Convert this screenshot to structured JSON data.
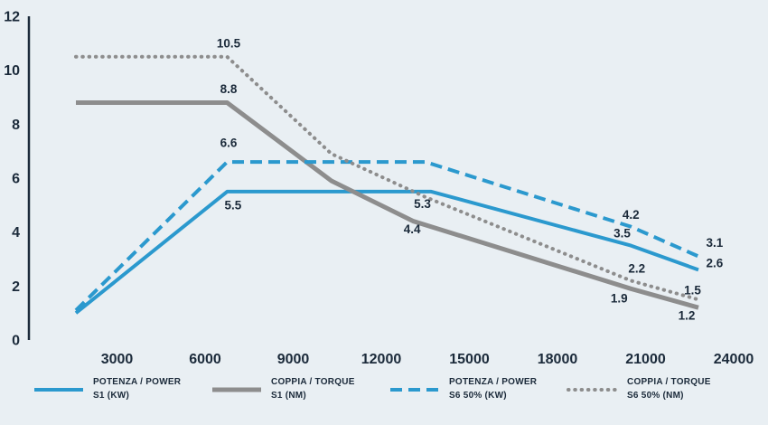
{
  "chart_data": {
    "type": "line",
    "title": "",
    "xlabel": "",
    "ylabel": "",
    "xlim": [
      0,
      24000
    ],
    "ylim": [
      0,
      12
    ],
    "x_tick_values": [
      3000,
      6000,
      9000,
      12000,
      15000,
      18000,
      21000,
      24000
    ],
    "x_ticks": [
      "3000",
      "6000",
      "9000",
      "12000",
      "15000",
      "18000",
      "21000",
      "24000"
    ],
    "y_ticks": [
      0,
      2,
      4,
      6,
      8,
      10,
      12
    ],
    "grid": false,
    "legend_position": "bottom",
    "series": [
      {
        "name": "POTENZA / POWER S1 (KW)",
        "color": "#2b99ce",
        "dash": "solid",
        "width": 4,
        "points": [
          [
            1600,
            1.0
          ],
          [
            6750,
            5.5
          ],
          [
            13700,
            5.5
          ],
          [
            20500,
            3.5
          ],
          [
            22800,
            2.6
          ]
        ]
      },
      {
        "name": "COPPIA / TORQUE S1 (NM)",
        "color": "#8d8d8d",
        "dash": "solid",
        "width": 5,
        "points": [
          [
            1600,
            8.8
          ],
          [
            6750,
            8.8
          ],
          [
            10300,
            5.9
          ],
          [
            13100,
            4.4
          ],
          [
            20500,
            1.9
          ],
          [
            22800,
            1.2
          ]
        ]
      },
      {
        "name": "POTENZA / POWER S6 50% (KW)",
        "color": "#2b99ce",
        "dash": "dashed",
        "width": 4,
        "points": [
          [
            1600,
            1.1
          ],
          [
            6750,
            6.6
          ],
          [
            13500,
            6.6
          ],
          [
            20500,
            4.2
          ],
          [
            22800,
            3.1
          ]
        ]
      },
      {
        "name": "COPPIA / TORQUE S6 50% (NM)",
        "color": "#8d8d8d",
        "dash": "dotted",
        "width": 4,
        "points": [
          [
            1600,
            10.5
          ],
          [
            6750,
            10.5
          ],
          [
            10300,
            6.9
          ],
          [
            13500,
            5.3
          ],
          [
            20500,
            2.2
          ],
          [
            22800,
            1.5
          ]
        ]
      }
    ],
    "point_labels": [
      {
        "text": "10.5",
        "x": 6800,
        "y": 11.0
      },
      {
        "text": "8.8",
        "x": 6800,
        "y": 9.3
      },
      {
        "text": "6.6",
        "x": 6800,
        "y": 7.3
      },
      {
        "text": "5.5",
        "x": 6950,
        "y": 5.0
      },
      {
        "text": "5.3",
        "x": 13400,
        "y": 5.05
      },
      {
        "text": "4.4",
        "x": 13050,
        "y": 4.1
      },
      {
        "text": "4.2",
        "x": 20500,
        "y": 4.65
      },
      {
        "text": "3.5",
        "x": 20200,
        "y": 3.95
      },
      {
        "text": "2.2",
        "x": 20700,
        "y": 2.65
      },
      {
        "text": "1.9",
        "x": 20100,
        "y": 1.55
      },
      {
        "text": "3.1",
        "x": 23350,
        "y": 3.6
      },
      {
        "text": "2.6",
        "x": 23350,
        "y": 2.85
      },
      {
        "text": "1.5",
        "x": 22600,
        "y": 1.85
      },
      {
        "text": "1.2",
        "x": 22400,
        "y": 0.9
      }
    ]
  },
  "style": {
    "background": "#e9eff3",
    "axis_color": "#1b2a3a",
    "text_color": "#1b2a3a",
    "blue": "#2b99ce",
    "gray": "#8d8d8d"
  },
  "legend": [
    {
      "line1": "POTENZA / POWER",
      "line2": "S1 (KW)",
      "series": 0
    },
    {
      "line1": "COPPIA / TORQUE",
      "line2": "S1 (NM)",
      "series": 1
    },
    {
      "line1": "POTENZA / POWER",
      "line2": "S6 50% (KW)",
      "series": 2
    },
    {
      "line1": "COPPIA / TORQUE",
      "line2": "S6 50% (NM)",
      "series": 3
    }
  ]
}
